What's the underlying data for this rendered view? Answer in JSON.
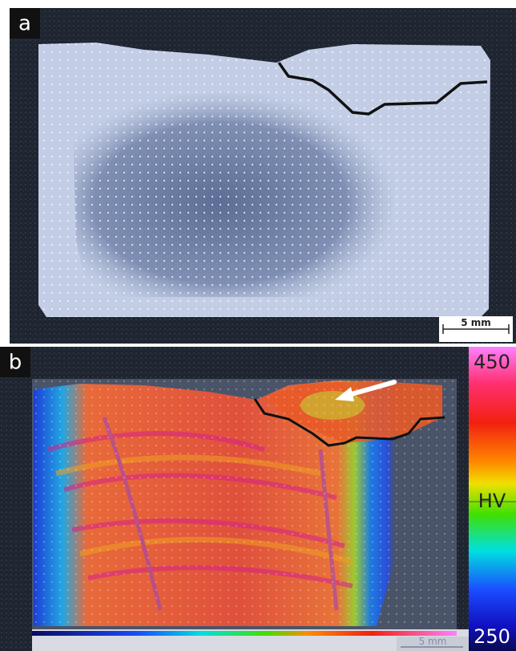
{
  "panel_a": {
    "label": "a",
    "scale_bar": "5 mm"
  },
  "panel_b": {
    "label": "b",
    "scale_bar": "5 mm",
    "colorbar": {
      "max": 450,
      "unit": "HV",
      "min": 250
    }
  }
}
